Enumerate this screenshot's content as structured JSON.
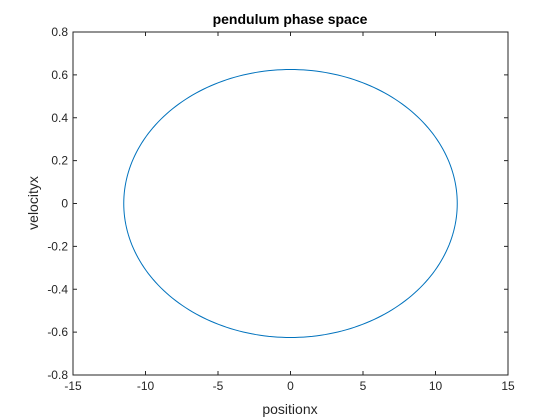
{
  "chart_data": {
    "type": "line",
    "title": "pendulum phase space",
    "xlabel": "positionx",
    "ylabel": "velocityx",
    "xlim": [
      -15,
      15
    ],
    "ylim": [
      -0.8,
      0.8
    ],
    "xticks": [
      "-15",
      "-10",
      "-5",
      "0",
      "5",
      "10",
      "15"
    ],
    "yticks": [
      "-0.8",
      "-0.6",
      "-0.4",
      "-0.2",
      "0",
      "0.2",
      "0.4",
      "0.6",
      "0.8"
    ],
    "grid": false,
    "series": [
      {
        "shape": "ellipse",
        "center": [
          0,
          0
        ],
        "x_amplitude": 11.5,
        "y_amplitude": 0.625,
        "color": "#0072BD"
      }
    ]
  },
  "colors": {
    "axes": "#262626",
    "line": "#0072BD",
    "background": "#ffffff"
  }
}
